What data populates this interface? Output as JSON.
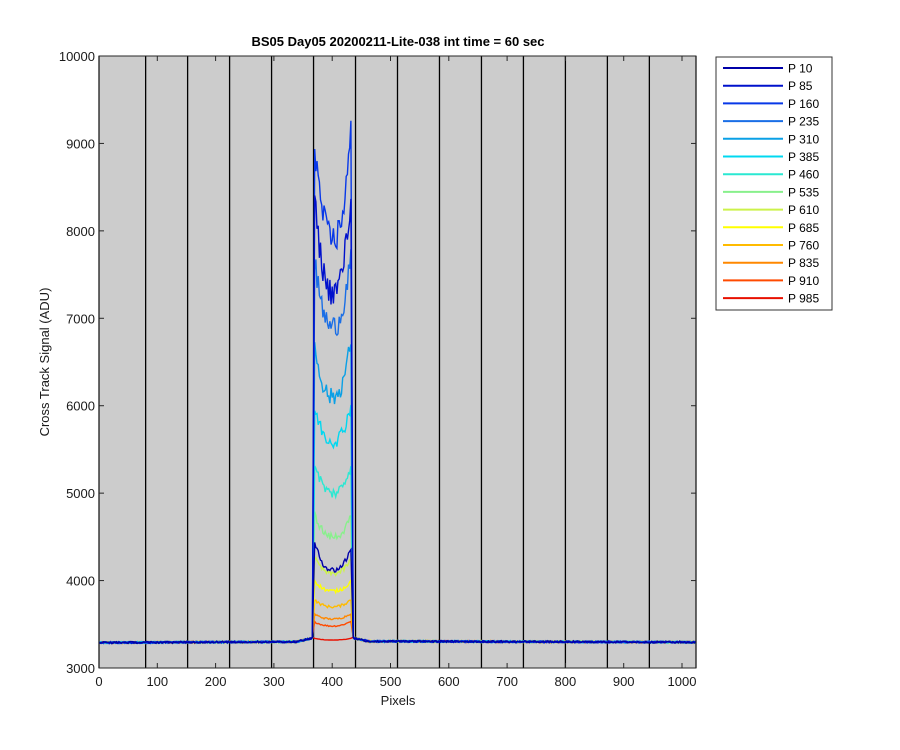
{
  "chart_data": {
    "type": "line",
    "title": "BS05 Day05 20200211-Lite-038 int time = 60 sec",
    "xlabel": "Pixels",
    "ylabel": "Cross Track Signal (ADU)",
    "xlim": [
      0,
      1024
    ],
    "ylim": [
      3000,
      10000
    ],
    "xticks": [
      0,
      100,
      200,
      300,
      400,
      500,
      600,
      700,
      800,
      900,
      1000
    ],
    "yticks": [
      3000,
      4000,
      5000,
      6000,
      7000,
      8000,
      9000,
      10000
    ],
    "background": "#cccccc",
    "vertical_lines": [
      0,
      80,
      152,
      224,
      296,
      368,
      440,
      512,
      584,
      656,
      728,
      800,
      872,
      944,
      1024
    ],
    "baseline": 3290,
    "peak_region": [
      369,
      433
    ],
    "legend_position": "outside-right",
    "series": [
      {
        "name": "P 10",
        "color": "#0000a8",
        "peak_left": 4450,
        "peak_right": 4380,
        "dip": 4120,
        "edge_boost": 1.0
      },
      {
        "name": "P 85",
        "color": "#0011cc",
        "peak_left": 8400,
        "peak_right": 8450,
        "dip": 7300,
        "edge_boost": 1.0
      },
      {
        "name": "P 160",
        "color": "#0838e8",
        "peak_left": 9080,
        "peak_right": 9200,
        "dip": 7900,
        "edge_boost": 1.0
      },
      {
        "name": "P 235",
        "color": "#1a6ee6",
        "peak_left": 7700,
        "peak_right": 7800,
        "dip": 6900,
        "edge_boost": 1.0
      },
      {
        "name": "P 310",
        "color": "#0aa0e6",
        "peak_left": 6720,
        "peak_right": 6800,
        "dip": 6100,
        "edge_boost": 1.0
      },
      {
        "name": "P 385",
        "color": "#00d8f0",
        "peak_left": 6000,
        "peak_right": 6050,
        "dip": 5600,
        "edge_boost": 1.0
      },
      {
        "name": "P 460",
        "color": "#2ae8d2",
        "peak_left": 5380,
        "peak_right": 5350,
        "dip": 5000,
        "edge_boost": 1.0
      },
      {
        "name": "P 535",
        "color": "#88f08c",
        "peak_left": 4780,
        "peak_right": 4740,
        "dip": 4500,
        "edge_boost": 1.0
      },
      {
        "name": "P 610",
        "color": "#ccf24a",
        "peak_left": 4270,
        "peak_right": 4250,
        "dip": 4080,
        "edge_boost": 1.0
      },
      {
        "name": "P 685",
        "color": "#ffff00",
        "peak_left": 4010,
        "peak_right": 4000,
        "dip": 3880,
        "edge_boost": 1.0
      },
      {
        "name": "P 760",
        "color": "#ffbb00",
        "peak_left": 3780,
        "peak_right": 3790,
        "dip": 3700,
        "edge_boost": 1.0
      },
      {
        "name": "P 835",
        "color": "#ff8800",
        "peak_left": 3620,
        "peak_right": 3630,
        "dip": 3560,
        "edge_boost": 1.0
      },
      {
        "name": "P 910",
        "color": "#ff4a00",
        "peak_left": 3530,
        "peak_right": 3540,
        "dip": 3480,
        "edge_boost": 1.0
      },
      {
        "name": "P 985",
        "color": "#e81000",
        "peak_left": 3340,
        "peak_right": 3340,
        "dip": 3320,
        "edge_boost": 1.0
      }
    ]
  }
}
